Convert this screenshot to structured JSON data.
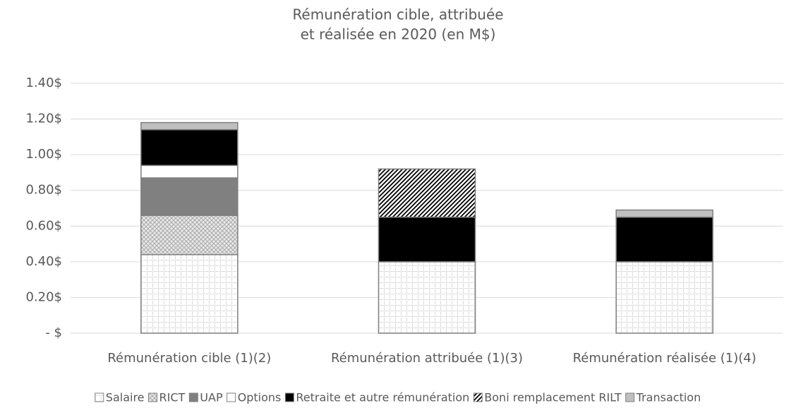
{
  "chart_data": {
    "type": "stacked_bar",
    "title_lines": [
      "Rémunération cible, attribuée",
      "et réalisée en 2020 (en M$)"
    ],
    "categories": [
      "Rémunération cible (1)(2)",
      "Rémunération attribuée (1)(3)",
      "Rémunération réalisée (1)(4)"
    ],
    "series": [
      {
        "name": "Salaire",
        "color": "#ffffff",
        "pattern": "grid",
        "values": [
          0.44,
          0.4,
          0.4
        ]
      },
      {
        "name": "RICT",
        "color": "#d9d9d9",
        "pattern": "crosshatch",
        "values": [
          0.22,
          0,
          0
        ]
      },
      {
        "name": "UAP",
        "color": "#808080",
        "pattern": "none",
        "values": [
          0.21,
          0,
          0
        ]
      },
      {
        "name": "Options",
        "color": "#ffffff",
        "pattern": "none",
        "values": [
          0.07,
          0,
          0
        ]
      },
      {
        "name": "Retraite et autre rémunération",
        "color": "#000000",
        "pattern": "none",
        "values": [
          0.2,
          0.25,
          0.25
        ]
      },
      {
        "name": "Boni remplacement RILT",
        "color": "#ffffff",
        "pattern": "diagonal",
        "values": [
          0,
          0.27,
          0
        ]
      },
      {
        "name": "Transaction",
        "color": "#bfbfbf",
        "pattern": "none",
        "values": [
          0.04,
          0,
          0.04
        ]
      }
    ],
    "ylim": [
      0,
      1.4
    ],
    "yticks": [
      {
        "value": 0,
        "label": "-   $"
      },
      {
        "value": 0.2,
        "label": "0.20$"
      },
      {
        "value": 0.4,
        "label": "0.40$"
      },
      {
        "value": 0.6,
        "label": "0.60$"
      },
      {
        "value": 0.8,
        "label": "0.80$"
      },
      {
        "value": 1.0,
        "label": "1.00$"
      },
      {
        "value": 1.2,
        "label": "1.20$"
      },
      {
        "value": 1.4,
        "label": "1.40$"
      }
    ],
    "grid": true,
    "legend": "bottom"
  }
}
